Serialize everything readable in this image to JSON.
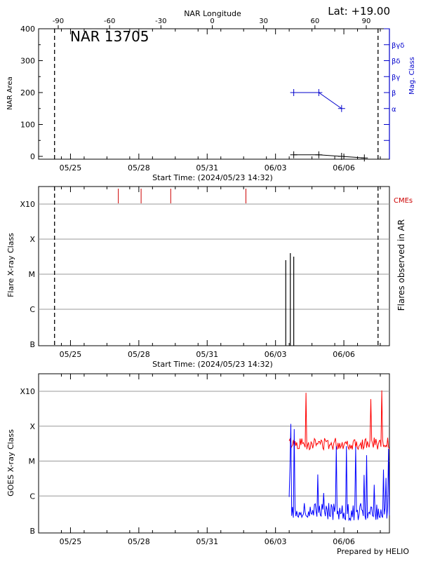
{
  "header": {
    "latitude_label": "Lat: +19.00",
    "footer": "Prepared by HELIO"
  },
  "chart_data": [
    {
      "type": "line",
      "title": "NAR 13705",
      "top_axis_label": "NAR Longitude",
      "top_ticks": [
        "-90",
        "-60",
        "-30",
        "0",
        "30",
        "60",
        "90"
      ],
      "top_tick_values": [
        -90,
        -60,
        -30,
        0,
        30,
        60,
        90
      ],
      "xlabel": "Start Time: (2024/05/23 14:32)",
      "x_ticks": [
        "05/25",
        "05/28",
        "05/31",
        "06/03",
        "06/06"
      ],
      "x_tick_days": [
        1.4,
        4.4,
        7.4,
        10.4,
        13.4
      ],
      "xlim_days": [
        0,
        15.4
      ],
      "ylabel": "NAR Area",
      "ylim": [
        0,
        400
      ],
      "y_ticks": [
        "0",
        "100",
        "200",
        "300",
        "400"
      ],
      "y_tick_values": [
        0,
        100,
        200,
        300,
        400
      ],
      "right_axis_label": "Mag. Class",
      "mag_classes": [
        "α",
        "β",
        "βγ",
        "βδ",
        "βγδ"
      ],
      "mag_class_values": [
        150,
        200,
        250,
        300,
        350
      ],
      "limb_lines_days": [
        0.7,
        14.9
      ],
      "series": [
        {
          "color": "#000000",
          "x_days": [
            11.2,
            12.3,
            13.3,
            14.3
          ],
          "values": [
            5,
            5,
            0,
            -5
          ]
        },
        {
          "color": "#0000cc",
          "x_days": [
            11.2,
            12.3,
            13.3
          ],
          "values": [
            200,
            200,
            150
          ]
        }
      ]
    },
    {
      "type": "bar",
      "xlabel": "Start Time: (2024/05/23 14:32)",
      "x_ticks": [
        "05/25",
        "05/28",
        "05/31",
        "06/03",
        "06/06"
      ],
      "ylabel": "Flare X-ray Class",
      "y_ticks": [
        "B",
        "C",
        "M",
        "X",
        "X10"
      ],
      "right_axis_label": "Flares observed in AR",
      "cme_label": "CMEs",
      "limb_lines_days": [
        0.7,
        14.9
      ],
      "cmes_days": [
        3.5,
        4.5,
        5.8,
        9.1
      ],
      "flares": [
        {
          "day": 10.85,
          "class_level": 2.4
        },
        {
          "day": 11.05,
          "class_level": 2.6
        },
        {
          "day": 11.2,
          "class_level": 2.5
        }
      ]
    },
    {
      "type": "line",
      "xlabel": "",
      "x_ticks": [
        "05/25",
        "05/28",
        "05/31",
        "06/03",
        "06/06"
      ],
      "ylabel": "GOES X-ray Class",
      "y_ticks": [
        "B",
        "C",
        "M",
        "X",
        "X10"
      ],
      "series": [
        {
          "color": "#ff0000",
          "description": "long",
          "x_start_day": 11.0,
          "x_end_day": 15.4,
          "baseline_level": 2.5
        },
        {
          "color": "#0000ff",
          "description": "short",
          "x_start_day": 11.0,
          "x_end_day": 15.4,
          "baseline_level": 0.3
        }
      ]
    }
  ]
}
